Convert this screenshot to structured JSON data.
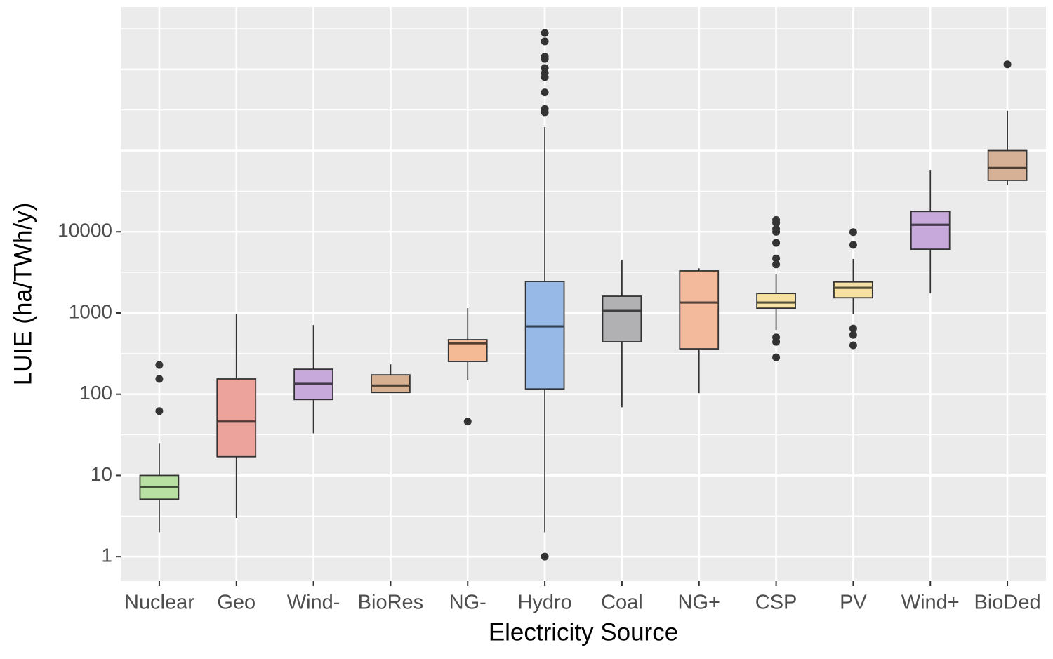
{
  "chart_data": {
    "type": "boxplot",
    "x_label": "Electricity Source",
    "y_label": "LUIE (ha/TWh/y)",
    "log_y": true,
    "grid": true,
    "ylim": [
      0.5,
      5850000
    ],
    "yticks": [
      1,
      10,
      100,
      1000,
      10000
    ],
    "categories": [
      "Nuclear",
      "Geo",
      "Wind-",
      "BioRes",
      "NG-",
      "Hydro",
      "Coal",
      "NG+",
      "CSP",
      "PV",
      "Wind+",
      "BioDed"
    ],
    "colors": [
      "#b9e0a3",
      "#eca39b",
      "#c7a9db",
      "#d7b092",
      "#f3ba95",
      "#97b9e7",
      "#b1b1b3",
      "#f3bb9c",
      "#f7e1a1",
      "#f7e1a1",
      "#c7a9db",
      "#d7b195"
    ],
    "boxes": [
      {
        "low": 2,
        "q1": 5.1,
        "median": 7.2,
        "q3": 10,
        "high": 25,
        "outliers": [
          229,
          154,
          62
        ]
      },
      {
        "low": 3,
        "q1": 17,
        "median": 46,
        "q3": 154,
        "high": 960,
        "outliers": []
      },
      {
        "low": 33,
        "q1": 86,
        "median": 134,
        "q3": 203,
        "high": 711,
        "outliers": []
      },
      {
        "low": 105,
        "q1": 105,
        "median": 128,
        "q3": 173,
        "high": 233,
        "outliers": []
      },
      {
        "low": 151,
        "q1": 253,
        "median": 424,
        "q3": 469,
        "high": 1146,
        "outliers": [
          46
        ]
      },
      {
        "low": 2,
        "q1": 116,
        "median": 684,
        "q3": 2445,
        "high": 195000,
        "outliers": [
          1,
          296000,
          325000,
          520000,
          800000,
          900000,
          1035000,
          1340000,
          1430000,
          2210000,
          2800000
        ]
      },
      {
        "low": 69,
        "q1": 442,
        "median": 1060,
        "q3": 1610,
        "high": 4440,
        "outliers": []
      },
      {
        "low": 103,
        "q1": 362,
        "median": 1345,
        "q3": 3300,
        "high": 3550,
        "outliers": []
      },
      {
        "low": 617,
        "q1": 1146,
        "median": 1345,
        "q3": 1740,
        "high": 3040,
        "outliers": [
          14000,
          12900,
          10800,
          9970,
          7300,
          4700,
          3950,
          500,
          440,
          285
        ]
      },
      {
        "low": 960,
        "q1": 1540,
        "median": 2040,
        "q3": 2410,
        "high": 4630,
        "outliers": [
          9900,
          6900,
          643,
          537,
          400
        ]
      },
      {
        "low": 1740,
        "q1": 6100,
        "median": 12200,
        "q3": 17800,
        "high": 57800,
        "outliers": []
      },
      {
        "low": 37300,
        "q1": 43000,
        "median": 61000,
        "q3": 100000,
        "high": 309000,
        "outliers": [
          1150000
        ]
      }
    ]
  }
}
